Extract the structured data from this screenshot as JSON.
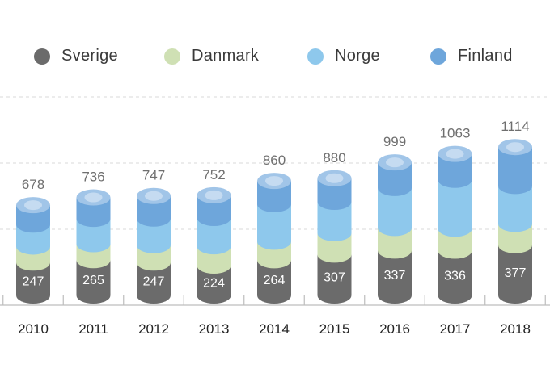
{
  "chart_data": {
    "type": "bar",
    "stacked": true,
    "categories": [
      "2010",
      "2011",
      "2012",
      "2013",
      "2014",
      "2015",
      "2016",
      "2017",
      "2018"
    ],
    "totals": [
      678,
      736,
      747,
      752,
      860,
      880,
      999,
      1063,
      1114
    ],
    "series": [
      {
        "name": "Sverige",
        "color": "#6b6b6b",
        "values": [
          247,
          265,
          247,
          224,
          264,
          307,
          337,
          336,
          377
        ]
      },
      {
        "name": "Danmark",
        "color": "#cfe0b4",
        "values": [
          120,
          120,
          130,
          145,
          140,
          160,
          170,
          165,
          160
        ]
      },
      {
        "name": "Norge",
        "color": "#8ec8ec",
        "values": [
          165,
          190,
          200,
          213,
          281,
          236,
          300,
          367,
          285
        ]
      },
      {
        "name": "Finland",
        "color": "#6ea6db",
        "values": [
          146,
          161,
          170,
          170,
          175,
          177,
          192,
          195,
          292
        ]
      }
    ],
    "ylim": [
      0,
      1500
    ],
    "grid": true,
    "legend_position": "top"
  }
}
